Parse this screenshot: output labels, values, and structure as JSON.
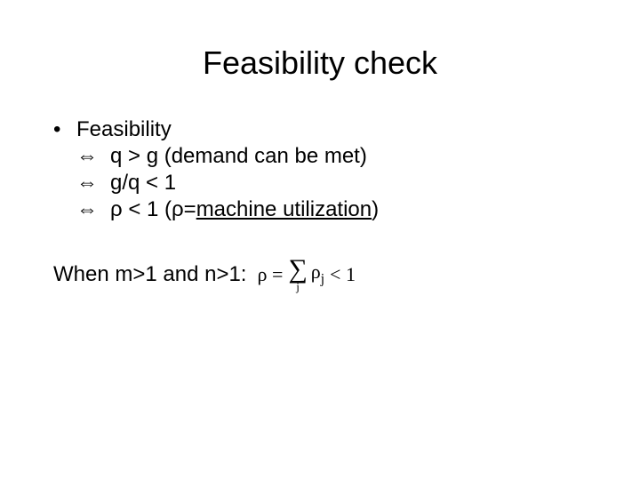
{
  "title_fontsize": 36,
  "body_fontsize": 24,
  "formula_fontsize": 22,
  "text_color": "#000000",
  "background_color": "#ffffff",
  "title": "Feasibility check",
  "bullet_label": "Feasibility",
  "lines": {
    "l1_arrow": "⇔",
    "l1_text": "q > g (demand can be met)",
    "l2_arrow": "⇔",
    "l2_text": "g/q < 1",
    "l3_arrow": "⇔",
    "l3_pre": "ρ < 1 (ρ=",
    "l3_underline": "machine utilization",
    "l3_post": ")"
  },
  "when_text": "When m>1 and n>1:",
  "formula": {
    "lhs": "ρ =",
    "sigma": "∑",
    "sub": "j",
    "term_rho": "ρ",
    "term_sub": "j",
    "rhs": "< 1"
  }
}
